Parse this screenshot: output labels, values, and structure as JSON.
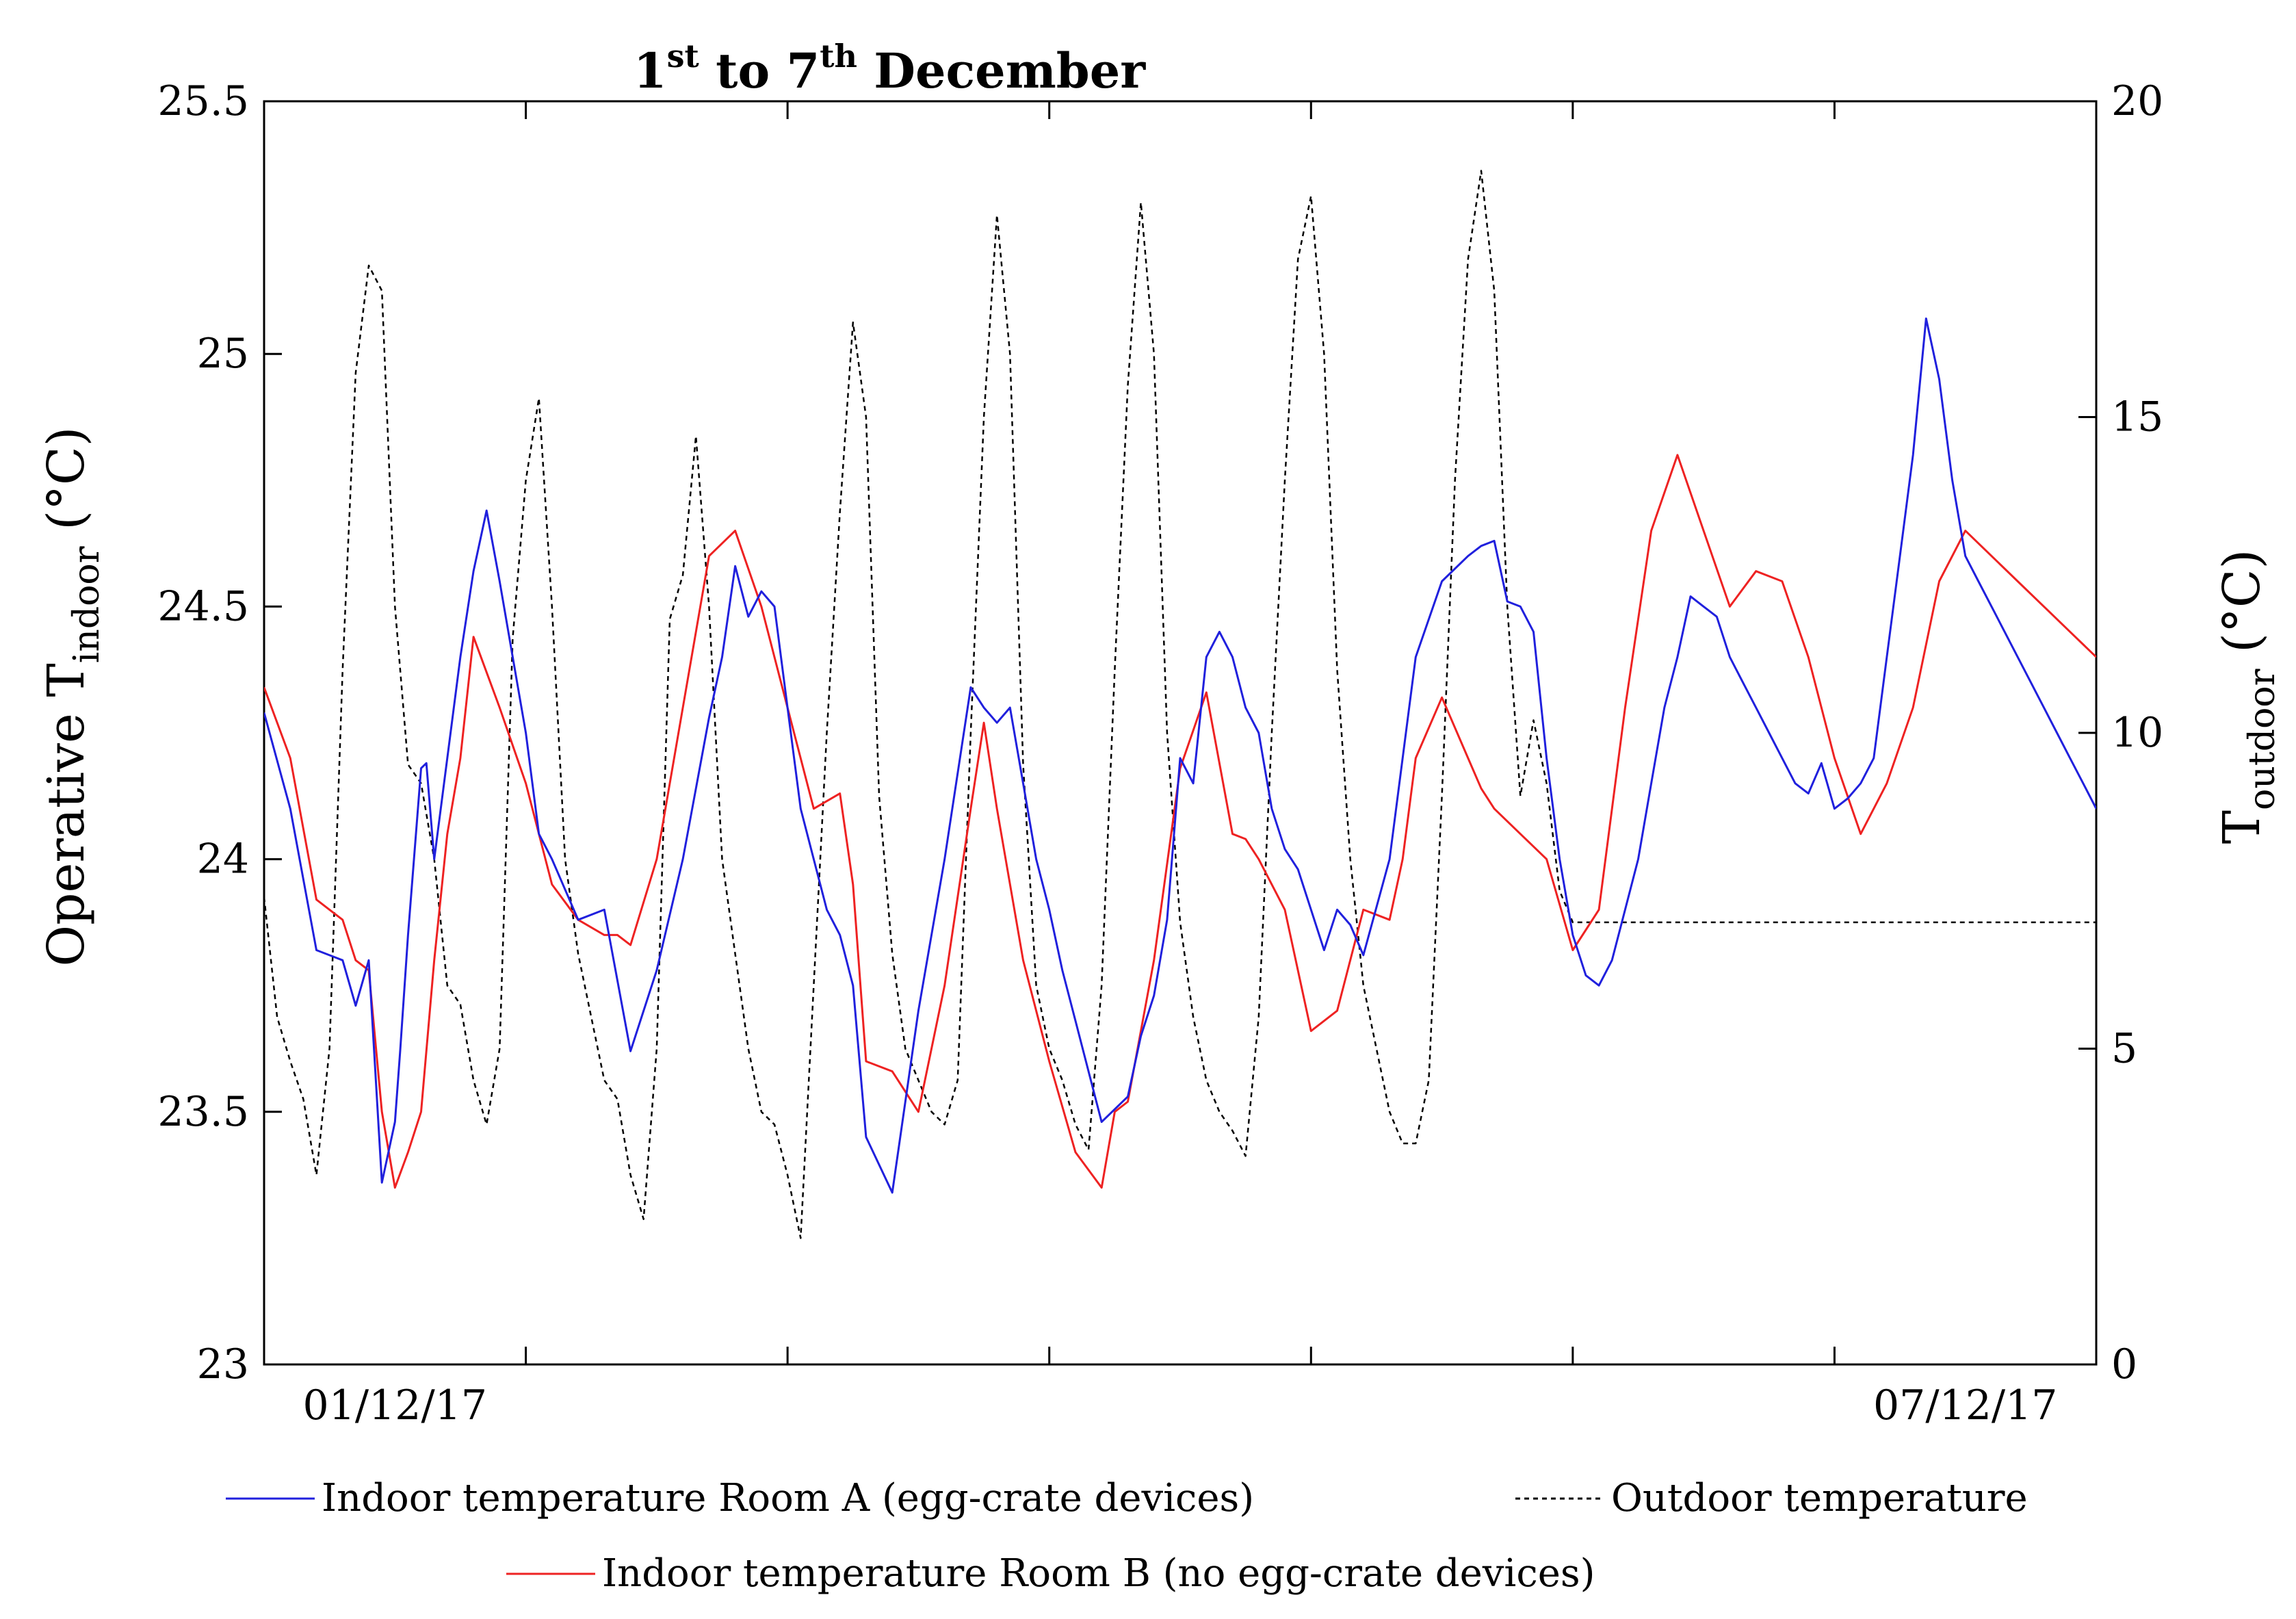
{
  "chart_data": {
    "type": "line",
    "title": {
      "part1": "1",
      "sup1": "st",
      "part2": " to 7",
      "sup2": "th",
      "part3": " December"
    },
    "ylabel_left": {
      "main": "Operative T",
      "sub": "indoor",
      "unit": " (°C)"
    },
    "ylabel_right": {
      "main": "T",
      "sub": "outdoor",
      "unit": " (°C)"
    },
    "xlim": [
      0,
      7
    ],
    "ylim_left": [
      23,
      25.5
    ],
    "ylim_right": [
      0,
      20
    ],
    "left_ticks": [
      {
        "value": 23,
        "label": "23"
      },
      {
        "value": 23.5,
        "label": "23.5"
      },
      {
        "value": 24,
        "label": "24"
      },
      {
        "value": 24.5,
        "label": "24.5"
      },
      {
        "value": 25,
        "label": "25"
      },
      {
        "value": 25.5,
        "label": "25.5"
      }
    ],
    "right_ticks": [
      {
        "value": 0,
        "label": "0"
      },
      {
        "value": 5,
        "label": "5"
      },
      {
        "value": 10,
        "label": "10"
      },
      {
        "value": 15,
        "label": "15"
      },
      {
        "value": 20,
        "label": "20"
      }
    ],
    "x_ticks": [
      1,
      2,
      3,
      4,
      5,
      6
    ],
    "x_tick_labels": [
      {
        "x": 0.5,
        "label": "01/12/17"
      },
      {
        "x": 6.5,
        "label": "07/12/17"
      }
    ],
    "grid": false,
    "legend": {
      "placement": "bottom",
      "items": [
        {
          "key": "room_a",
          "label": "Indoor temperature Room A (egg-crate devices)"
        },
        {
          "key": "outdoor",
          "label": "Outdoor temperature"
        },
        {
          "key": "room_b",
          "label": "Indoor temperature Room B (no egg-crate devices)"
        }
      ]
    },
    "series": [
      {
        "key": "room_a",
        "name": "Indoor temperature Room A (egg-crate devices)",
        "axis": "left",
        "color": "#2020dd",
        "style": "solid",
        "x": [
          0.0,
          0.1,
          0.2,
          0.25,
          0.3,
          0.35,
          0.4,
          0.45,
          0.5,
          0.52,
          0.55,
          0.6,
          0.62,
          0.65,
          0.7,
          0.75,
          0.8,
          0.85,
          0.9,
          0.95,
          1.0,
          1.05,
          1.1,
          1.2,
          1.3,
          1.4,
          1.5,
          1.6,
          1.7,
          1.75,
          1.8,
          1.85,
          1.9,
          1.95,
          2.0,
          2.05,
          2.1,
          2.15,
          2.2,
          2.25,
          2.3,
          2.4,
          2.5,
          2.6,
          2.7,
          2.75,
          2.8,
          2.85,
          2.9,
          2.95,
          3.0,
          3.05,
          3.1,
          3.2,
          3.3,
          3.35,
          3.4,
          3.45,
          3.5,
          3.55,
          3.6,
          3.65,
          3.7,
          3.75,
          3.8,
          3.85,
          3.9,
          3.95,
          4.0,
          4.05,
          4.1,
          4.15,
          4.2,
          4.3,
          4.4,
          4.5,
          4.6,
          4.65,
          4.7,
          4.75,
          4.8,
          4.85,
          4.9,
          4.95,
          5.0,
          5.05,
          5.1,
          5.15,
          5.2,
          5.25,
          5.3,
          5.35,
          5.4,
          5.45,
          5.5,
          5.55,
          5.6,
          5.65,
          5.7,
          5.75,
          5.8,
          5.85,
          5.9,
          5.95,
          6.0,
          6.05,
          6.1,
          6.15,
          6.2,
          6.25,
          6.3,
          6.35,
          6.4,
          6.45,
          6.5,
          6.55,
          6.6,
          6.65,
          6.7,
          6.75,
          6.8,
          6.85,
          6.9,
          6.95,
          7.0
        ],
        "values": [
          24.29,
          24.1,
          23.82,
          23.81,
          23.8,
          23.71,
          23.8,
          23.36,
          23.48,
          23.62,
          23.85,
          24.18,
          24.19,
          24.0,
          24.2,
          24.4,
          24.57,
          24.69,
          24.55,
          24.4,
          24.25,
          24.05,
          24.0,
          23.88,
          23.9,
          23.62,
          23.78,
          24.0,
          24.28,
          24.4,
          24.58,
          24.48,
          24.53,
          24.5,
          24.3,
          24.1,
          24.0,
          23.9,
          23.85,
          23.75,
          23.45,
          23.34,
          23.7,
          24.0,
          24.34,
          24.3,
          24.27,
          24.3,
          24.15,
          24.0,
          23.9,
          23.78,
          23.68,
          23.48,
          23.53,
          23.65,
          23.73,
          23.88,
          24.2,
          24.15,
          24.4,
          24.45,
          24.4,
          24.3,
          24.25,
          24.1,
          24.02,
          23.98,
          23.9,
          23.82,
          23.9,
          23.87,
          23.81,
          24.0,
          24.4,
          24.55,
          24.6,
          24.62,
          24.63,
          24.51,
          24.5,
          24.45,
          24.2,
          24.0,
          23.85,
          23.77,
          23.75,
          23.8,
          23.9,
          24.0,
          24.15,
          24.3,
          24.4,
          24.52,
          24.5,
          24.48,
          24.4,
          24.35,
          24.3,
          24.25,
          24.2,
          24.15,
          24.13,
          24.19,
          24.1,
          24.12,
          24.15,
          24.2,
          24.4,
          24.6,
          24.8,
          25.07,
          24.95,
          24.75,
          24.6,
          24.55,
          24.5,
          24.45,
          24.4,
          24.35,
          24.3,
          24.25,
          24.2,
          24.15,
          24.1
        ],
        "values_note": "series digitised from figure; trailing values below replace tail"
      },
      {
        "key": "room_b",
        "name": "Indoor temperature Room B (no egg-crate devices)",
        "axis": "left",
        "color": "#ee2222",
        "style": "solid",
        "x": [
          0.0,
          0.1,
          0.2,
          0.25,
          0.3,
          0.35,
          0.4,
          0.45,
          0.5,
          0.55,
          0.6,
          0.65,
          0.7,
          0.75,
          0.8,
          0.9,
          1.0,
          1.1,
          1.2,
          1.3,
          1.35,
          1.4,
          1.5,
          1.6,
          1.7,
          1.8,
          1.9,
          2.0,
          2.1,
          2.2,
          2.25,
          2.3,
          2.4,
          2.5,
          2.6,
          2.7,
          2.75,
          2.8,
          2.9,
          3.0,
          3.1,
          3.2,
          3.25,
          3.3,
          3.4,
          3.5,
          3.6,
          3.7,
          3.75,
          3.8,
          3.9,
          4.0,
          4.1,
          4.2,
          4.3,
          4.35,
          4.4,
          4.5,
          4.6,
          4.65,
          4.7,
          4.8,
          4.9,
          5.0,
          5.1,
          5.2,
          5.3,
          5.4,
          5.5,
          5.6,
          5.7,
          5.8,
          5.9,
          6.0,
          6.1,
          6.2,
          6.3,
          6.4,
          6.5,
          6.6,
          6.7,
          6.8,
          6.9,
          7.0
        ],
        "values": [
          24.34,
          24.2,
          23.92,
          23.9,
          23.88,
          23.8,
          23.78,
          23.5,
          23.35,
          23.42,
          23.5,
          23.8,
          24.05,
          24.2,
          24.44,
          24.3,
          24.15,
          23.95,
          23.88,
          23.85,
          23.85,
          23.83,
          24.0,
          24.3,
          24.6,
          24.65,
          24.5,
          24.3,
          24.1,
          24.13,
          23.95,
          23.6,
          23.58,
          23.5,
          23.75,
          24.1,
          24.27,
          24.1,
          23.8,
          23.6,
          23.42,
          23.35,
          23.5,
          23.52,
          23.8,
          24.18,
          24.33,
          24.05,
          24.04,
          24.0,
          23.9,
          23.66,
          23.7,
          23.9,
          23.88,
          24.0,
          24.2,
          24.32,
          24.2,
          24.14,
          24.1,
          24.05,
          24.0,
          23.82,
          23.9,
          24.3,
          24.65,
          24.8,
          24.65,
          24.5,
          24.57,
          24.55,
          24.4,
          24.2,
          24.05,
          24.15,
          24.3,
          24.55,
          24.65,
          24.6,
          24.55,
          24.5,
          24.45,
          24.4
        ]
      },
      {
        "key": "outdoor",
        "name": "Outdoor temperature",
        "axis": "right",
        "color": "#000000",
        "style": "dashed",
        "x": [
          0.0,
          0.05,
          0.1,
          0.15,
          0.2,
          0.25,
          0.3,
          0.35,
          0.4,
          0.45,
          0.5,
          0.55,
          0.6,
          0.65,
          0.7,
          0.75,
          0.8,
          0.85,
          0.9,
          0.95,
          1.0,
          1.05,
          1.1,
          1.15,
          1.2,
          1.25,
          1.3,
          1.35,
          1.4,
          1.45,
          1.5,
          1.55,
          1.6,
          1.65,
          1.7,
          1.75,
          1.8,
          1.85,
          1.9,
          1.95,
          2.0,
          2.05,
          2.1,
          2.15,
          2.2,
          2.25,
          2.3,
          2.35,
          2.4,
          2.45,
          2.5,
          2.55,
          2.6,
          2.65,
          2.7,
          2.75,
          2.8,
          2.85,
          2.9,
          2.95,
          3.0,
          3.05,
          3.1,
          3.15,
          3.2,
          3.25,
          3.3,
          3.35,
          3.4,
          3.45,
          3.5,
          3.55,
          3.6,
          3.65,
          3.7,
          3.75,
          3.8,
          3.85,
          3.9,
          3.95,
          4.0,
          4.05,
          4.1,
          4.15,
          4.2,
          4.25,
          4.3,
          4.35,
          4.4,
          4.45,
          4.5,
          4.55,
          4.6,
          4.65,
          4.7,
          4.75,
          4.8,
          4.85,
          4.9,
          4.95,
          5.0,
          5.05,
          5.1,
          5.15,
          5.2,
          5.25,
          5.3,
          5.35,
          5.4,
          5.45,
          5.5,
          5.55,
          5.6,
          5.65,
          5.7,
          5.75,
          5.8,
          5.85,
          5.9,
          5.95,
          6.0,
          6.05,
          6.1,
          6.15,
          6.2,
          6.25,
          6.3,
          6.35,
          6.4,
          6.45,
          6.5,
          6.55,
          6.6,
          6.65,
          6.7,
          6.75,
          6.8,
          6.85,
          6.9,
          6.95,
          7.0
        ],
        "values": [
          7.4,
          5.5,
          4.8,
          4.2,
          3.0,
          5.0,
          11.0,
          15.7,
          17.4,
          17.0,
          12.0,
          9.5,
          9.2,
          8.0,
          6.0,
          5.7,
          4.5,
          3.8,
          5.0,
          11.5,
          14.0,
          15.3,
          12.0,
          8.0,
          6.5,
          5.5,
          4.5,
          4.2,
          3.0,
          2.3,
          5.0,
          11.8,
          12.5,
          14.7,
          12.0,
          8.0,
          6.5,
          5.0,
          4.0,
          3.8,
          3.0,
          2.0,
          6.0,
          10.0,
          13.5,
          16.5,
          15.0,
          9.0,
          6.5,
          5.0,
          4.5,
          4.0,
          3.8,
          4.5,
          10.0,
          15.0,
          18.2,
          16.0,
          9.5,
          6.0,
          5.0,
          4.5,
          3.8,
          3.4,
          6.0,
          11.0,
          15.5,
          18.4,
          16.0,
          10.0,
          7.0,
          5.5,
          4.5,
          4.0,
          3.7,
          3.3,
          5.5,
          10.0,
          14.0,
          17.5,
          18.5,
          16.0,
          11.0,
          8.0,
          6.0,
          5.0,
          4.0,
          3.5,
          3.5,
          4.5,
          9.0,
          14.0,
          17.5,
          18.9,
          17.0,
          12.0,
          9.0,
          10.2,
          9.2,
          7.5,
          7.0,
          7.0,
          7.0,
          7.0,
          7.0,
          7.0,
          7.0,
          7.0,
          7.0,
          7.0,
          7.0,
          7.0,
          7.0,
          7.0,
          7.0,
          7.0,
          7.0,
          7.0,
          7.0,
          7.0,
          7.0,
          7.0,
          7.0,
          7.0,
          7.0,
          7.0,
          7.0,
          7.0,
          7.0,
          7.0,
          7.0,
          7.0,
          7.0,
          7.0,
          7.0,
          7.0,
          7.0,
          7.0,
          7.0,
          7.0,
          7.0
        ]
      }
    ]
  }
}
